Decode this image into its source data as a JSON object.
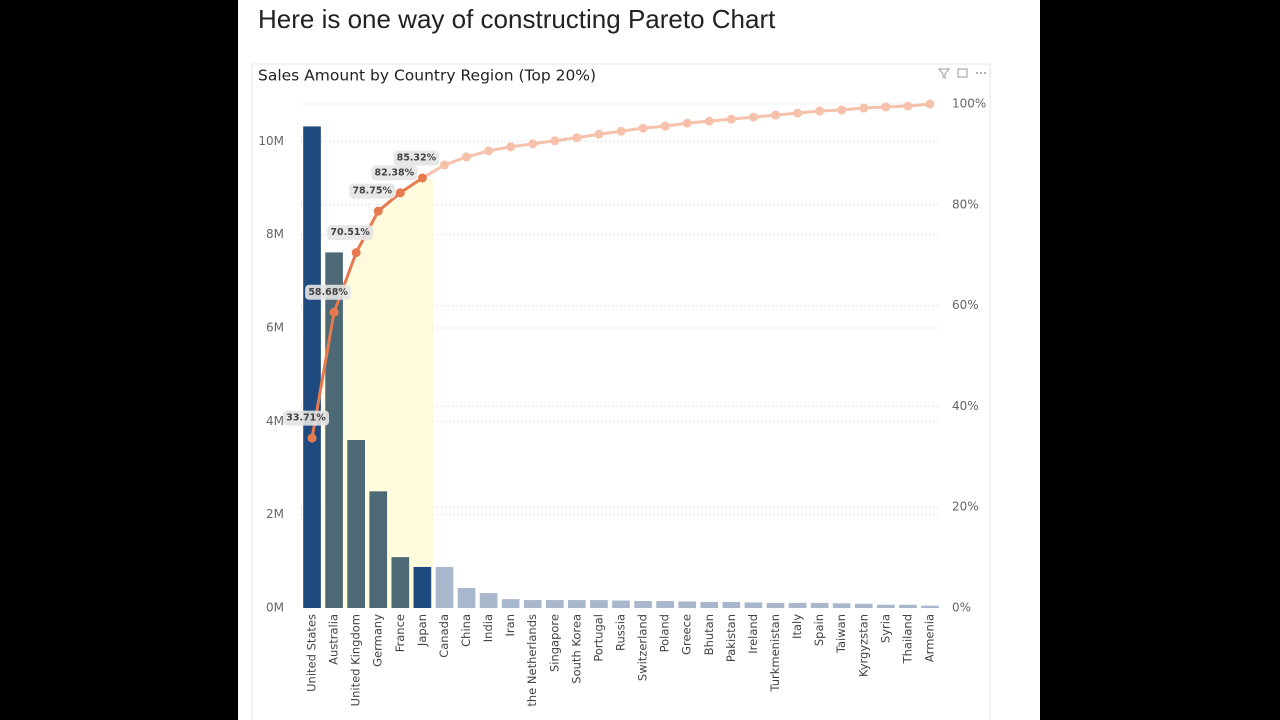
{
  "page_title": "Here is one way of constructing Pareto Chart",
  "chart_data": {
    "type": "pareto",
    "title": "Sales Amount by Country Region (Top 20%)",
    "categories": [
      "United States",
      "Australia",
      "United Kingdom",
      "Germany",
      "France",
      "Japan",
      "Canada",
      "China",
      "India",
      "Iran",
      "the Netherlands",
      "Singapore",
      "South Korea",
      "Portugal",
      "Russia",
      "Switzerland",
      "Poland",
      "Greece",
      "Bhutan",
      "Pakistan",
      "Ireland",
      "Turkmenistan",
      "Italy",
      "Spain",
      "Taiwan",
      "Kyrgyzstan",
      "Syria",
      "Thailand",
      "Armenia"
    ],
    "series": [
      {
        "type": "bar",
        "values": [
          10320000,
          7620000,
          3600000,
          2500000,
          1090000,
          880000,
          880000,
          430000,
          320000,
          190000,
          170000,
          170000,
          170000,
          170000,
          160000,
          150000,
          150000,
          140000,
          130000,
          130000,
          120000,
          110000,
          110000,
          110000,
          100000,
          90000,
          70000,
          70000,
          50000
        ],
        "colors": [
          "#1f4a7f",
          "#4e6976",
          "#4e6976",
          "#4e6976",
          "#4e6976",
          "#1f4a7f",
          "#a8b7cb",
          "#a8b7cb",
          "#a8b7cb",
          "#a8b7cb",
          "#a8b7cb",
          "#a8b7cb",
          "#a8b7cb",
          "#a8b7cb",
          "#a8b7cb",
          "#a8b7cb",
          "#a8b7cb",
          "#a8b7cb",
          "#a8b7cb",
          "#a8b7cb",
          "#a8b7cb",
          "#a8b7cb",
          "#a8b7cb",
          "#a8b7cb",
          "#a8b7cb",
          "#a8b7cb",
          "#a8b7cb",
          "#a8b7cb",
          "#a8b7cb"
        ]
      },
      {
        "type": "line",
        "axis": "y2",
        "values": [
          33.71,
          58.68,
          70.51,
          78.75,
          82.38,
          85.32,
          87.9,
          89.5,
          90.7,
          91.5,
          92.1,
          92.7,
          93.3,
          94.0,
          94.6,
          95.2,
          95.6,
          96.2,
          96.6,
          97.0,
          97.4,
          97.8,
          98.2,
          98.6,
          98.8,
          99.2,
          99.4,
          99.6,
          100
        ],
        "value_labels": [
          "33.71%",
          "58.68%",
          "70.51%",
          "78.75%",
          "82.38%",
          "85.32%",
          null,
          null,
          null,
          null,
          null,
          null,
          null,
          null,
          null,
          null,
          null,
          null,
          null,
          null,
          null,
          null,
          null,
          null,
          null,
          null,
          null,
          null,
          null
        ],
        "colors": [
          "#e67a4e",
          "#e67a4e",
          "#e67a4e",
          "#e67a4e",
          "#e67a4e",
          "#e67a4e",
          "#f5c1aa",
          "#f5c1aa",
          "#f5c1aa",
          "#f5c1aa",
          "#f5c1aa",
          "#f5c1aa",
          "#f5c1aa",
          "#f5c1aa",
          "#f5c1aa",
          "#f5c1aa",
          "#f5c1aa",
          "#f5c1aa",
          "#f5c1aa",
          "#f5c1aa",
          "#f5c1aa",
          "#f5c1aa",
          "#f5c1aa",
          "#f5c1aa",
          "#f5c1aa",
          "#f5c1aa",
          "#f5c1aa",
          "#f5c1aa",
          "#f5c1aa"
        ]
      }
    ],
    "highlight": {
      "from": "Australia",
      "to": "Japan",
      "color": "#fffbdc"
    },
    "ylim": [
      0,
      10800000
    ],
    "yticks": [
      {
        "value": 0,
        "label": "0M"
      },
      {
        "value": 2000000,
        "label": "2M"
      },
      {
        "value": 4000000,
        "label": "4M"
      },
      {
        "value": 6000000,
        "label": "6M"
      },
      {
        "value": 8000000,
        "label": "8M"
      },
      {
        "value": 10000000,
        "label": "10M"
      }
    ],
    "y2lim": [
      0,
      100
    ],
    "y2ticks": [
      {
        "value": 0,
        "label": "0%"
      },
      {
        "value": 20,
        "label": "20%"
      },
      {
        "value": 40,
        "label": "40%"
      },
      {
        "value": 60,
        "label": "60%"
      },
      {
        "value": 80,
        "label": "80%"
      },
      {
        "value": 100,
        "label": "100%"
      }
    ],
    "grid": true
  }
}
